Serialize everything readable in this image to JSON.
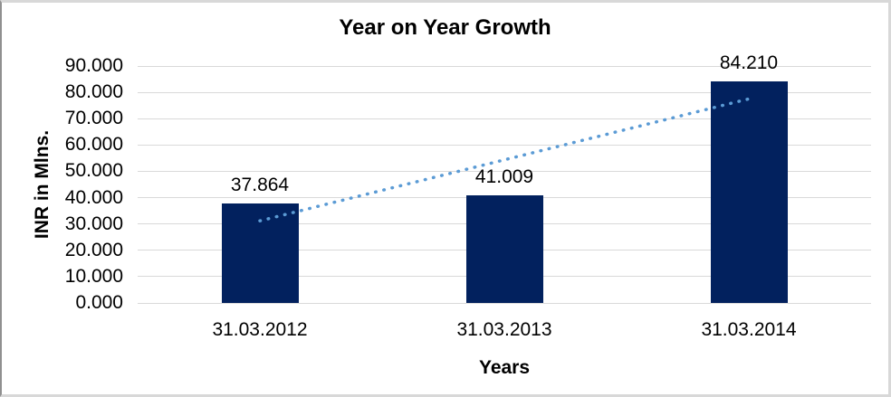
{
  "chart_data": {
    "type": "bar",
    "title": "Year on Year Growth",
    "xlabel": "Years",
    "ylabel": "INR in Mlns.",
    "categories": [
      "31.03.2012",
      "31.03.2013",
      "31.03.2014"
    ],
    "values": [
      37.864,
      41.009,
      84.21
    ],
    "data_labels": [
      "37.864",
      "41.009",
      "84.210"
    ],
    "ylim": [
      0,
      90
    ],
    "ytick_step": 10,
    "ytick_labels": [
      "0.000",
      "10.000",
      "20.000",
      "30.000",
      "40.000",
      "50.000",
      "60.000",
      "70.000",
      "80.000",
      "90.000"
    ],
    "grid": true,
    "legend": "none",
    "colors": {
      "bar": "#02215e",
      "gridline": "#d9d9d9",
      "trendline": "#5b9bd5",
      "text": "#000000",
      "frame_border": "#d8d8d8"
    },
    "trendline": {
      "type": "linear",
      "style": "dotted",
      "start_value": 31.19,
      "end_value": 77.53
    }
  }
}
